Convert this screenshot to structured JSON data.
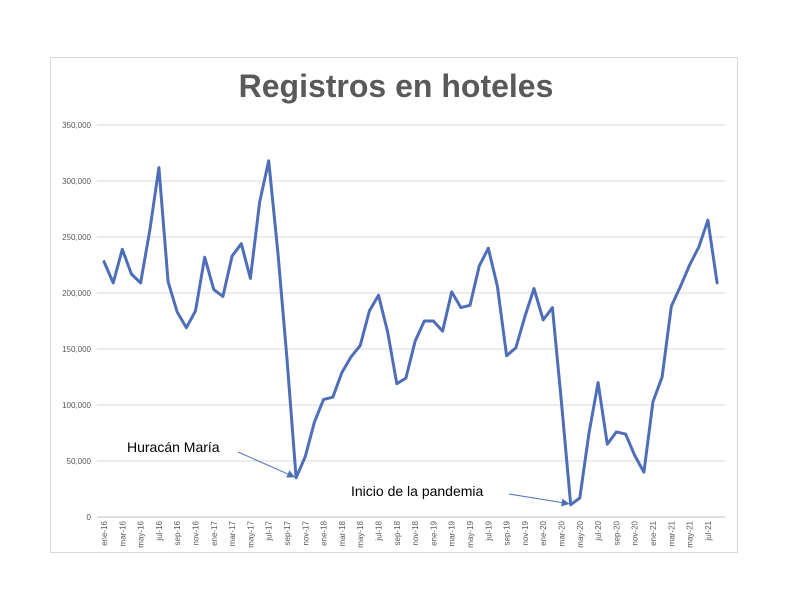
{
  "chart_data": {
    "type": "line",
    "title": "Registros en hoteles",
    "xlabel": "",
    "ylabel": "",
    "ylim": [
      0,
      350000
    ],
    "y_ticks": [
      "0",
      "50,000",
      "100,000",
      "150,000",
      "200,000",
      "250,000",
      "300,000",
      "350,000"
    ],
    "y_tick_values": [
      0,
      50000,
      100000,
      150000,
      200000,
      250000,
      300000,
      350000
    ],
    "grid": true,
    "x_tick_labels": [
      "ene-16",
      "mar-16",
      "may-16",
      "jul-16",
      "sep-16",
      "nov-16",
      "ene-17",
      "mar-17",
      "may-17",
      "jul-17",
      "sep-17",
      "nov-17",
      "ene-18",
      "mar-18",
      "may-18",
      "jul-18",
      "sep-18",
      "nov-18",
      "ene-19",
      "mar-19",
      "may-19",
      "jul-19",
      "sep-19",
      "nov-19",
      "ene-20",
      "mar-20",
      "may-20",
      "jul-20",
      "sep-20",
      "nov-20",
      "ene-21",
      "mar-21",
      "may-21",
      "jul-21"
    ],
    "series": [
      {
        "color": "#4f6eb8",
        "values": [
          228000,
          209000,
          239000,
          217000,
          209000,
          256000,
          312000,
          210000,
          183000,
          169000,
          184000,
          232000,
          203000,
          197000,
          233000,
          244000,
          213000,
          281000,
          318000,
          236000,
          141000,
          35000,
          54000,
          85000,
          105000,
          107000,
          129000,
          143000,
          153000,
          184000,
          198000,
          165000,
          119000,
          124000,
          157000,
          175000,
          175000,
          166000,
          201000,
          187000,
          189000,
          224000,
          240000,
          206000,
          144000,
          151000,
          179000,
          204000,
          176000,
          187000,
          102000,
          11000,
          17000,
          75000,
          120000,
          65000,
          76000,
          74000,
          55000,
          40000,
          103000,
          125000,
          188000,
          206000,
          225000,
          241000,
          265000,
          209000
        ]
      }
    ],
    "annotations": [
      {
        "text": "Huracán María",
        "target_index": 21
      },
      {
        "text": "Inicio de la pandemia",
        "target_index": 51
      }
    ]
  }
}
